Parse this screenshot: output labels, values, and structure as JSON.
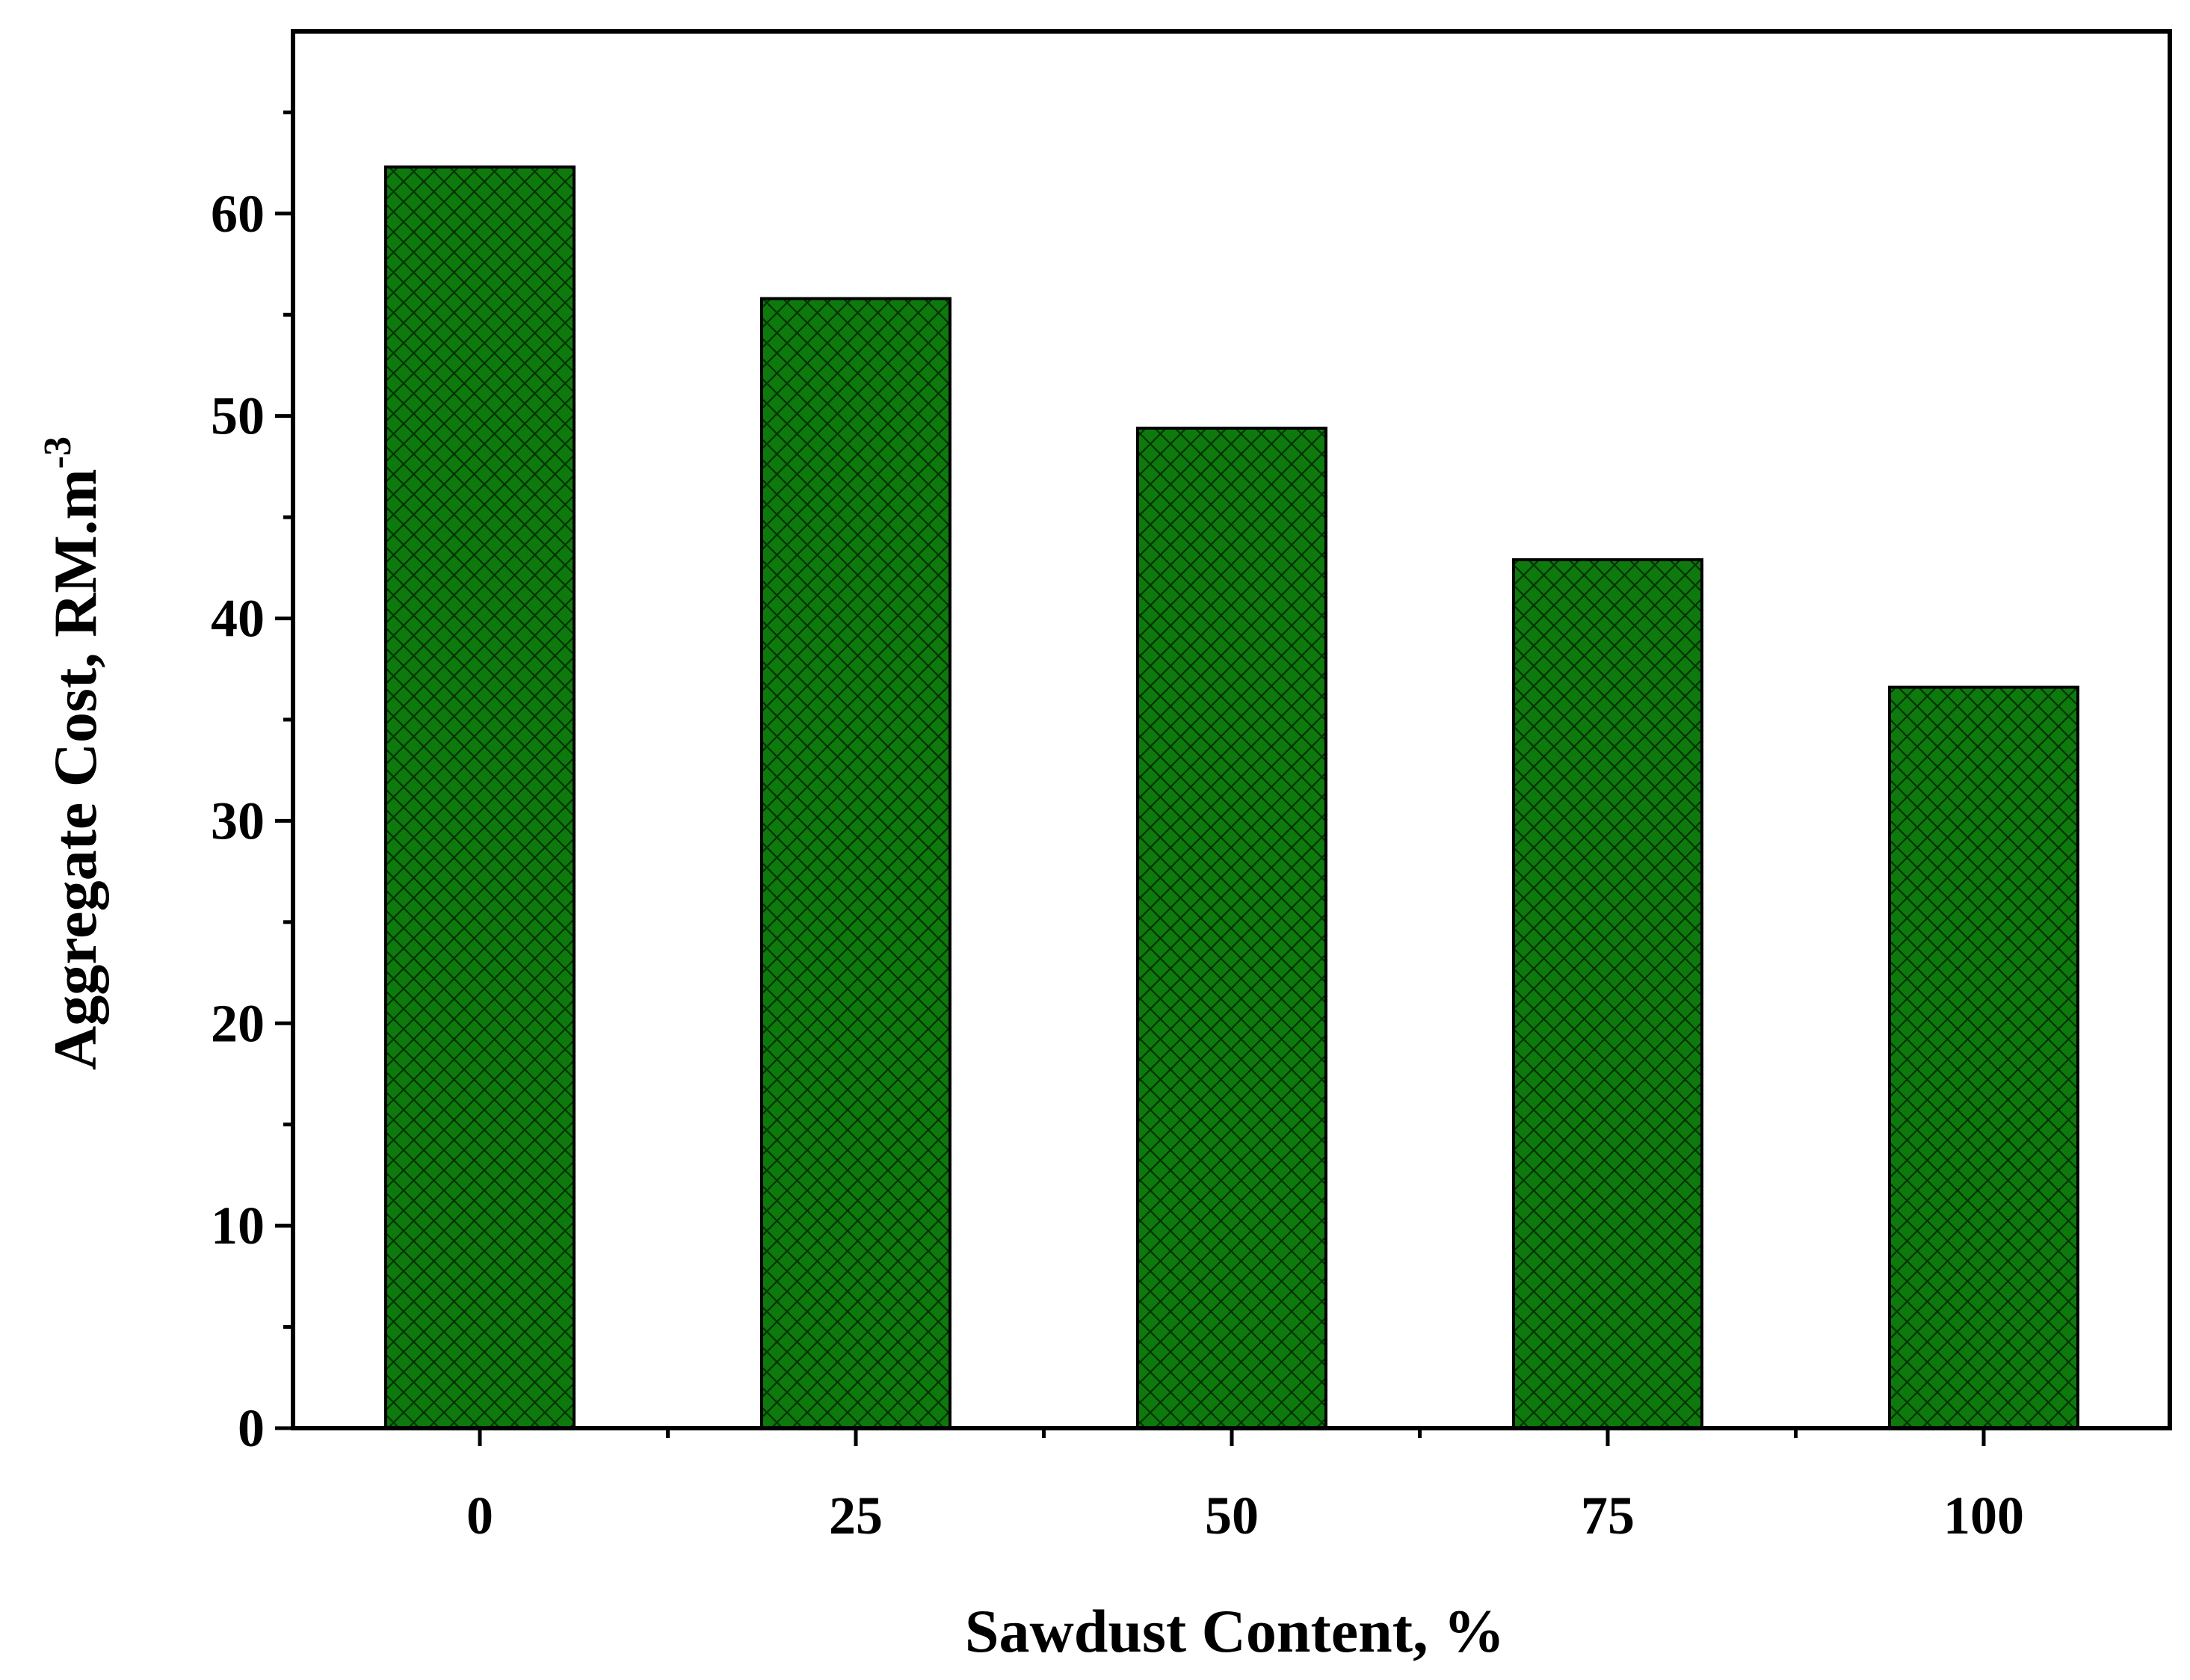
{
  "chart_data": {
    "type": "bar",
    "title": "",
    "xlabel": "Sawdust Content, %",
    "ylabel": "Aggregate Cost, RM.m",
    "ylabel_superscript": "-3",
    "categories": [
      "0",
      "25",
      "50",
      "75",
      "100"
    ],
    "values": [
      62.3,
      55.8,
      49.4,
      42.9,
      36.6
    ],
    "ylim": [
      0,
      69
    ],
    "yticks": [
      0,
      10,
      20,
      30,
      40,
      50,
      60
    ],
    "yticklabels": [
      "0",
      "10",
      "20",
      "30",
      "40",
      "50",
      "60"
    ],
    "grid": false,
    "legend": "none",
    "bar_color": "#0e7a0d",
    "hatch": "crosshatch",
    "hatch_color": "#003300"
  }
}
